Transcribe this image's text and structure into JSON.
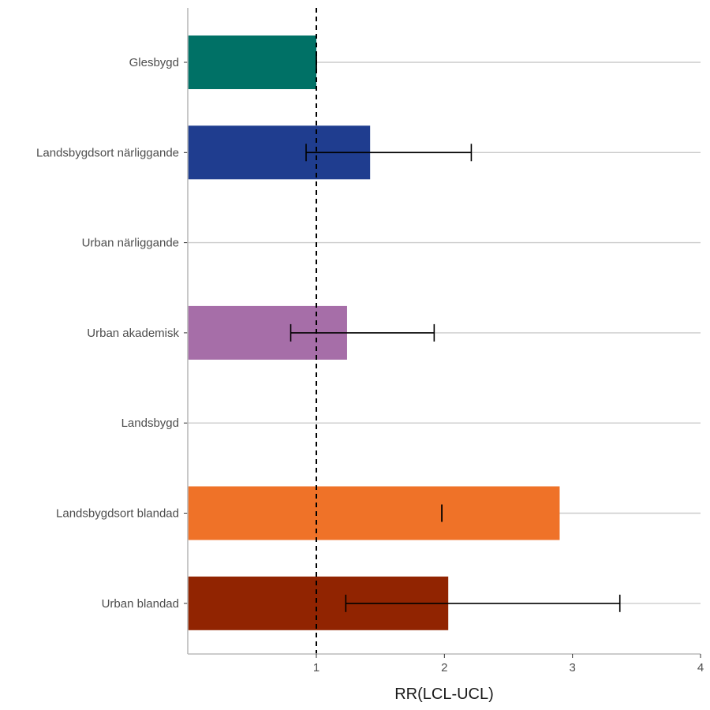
{
  "chart_data": {
    "type": "bar",
    "orientation": "horizontal",
    "xlabel": "RR(LCL-UCL)",
    "xlim": [
      0,
      4
    ],
    "x_ticks": [
      1,
      2,
      3,
      4
    ],
    "x_tick_labels": [
      "1",
      "2",
      "3",
      "4"
    ],
    "reference_line": 1,
    "grid": "horizontal major lines at each category",
    "categories": [
      "Glesbygd",
      "Landsbygdsort närliggande",
      "Urban närliggande",
      "Urban akademisk",
      "Landsbygd",
      "Landsbygdsort blandad",
      "Urban blandad"
    ],
    "bars": [
      {
        "category": "Glesbygd",
        "value": 1.0,
        "lcl": 1.0,
        "ucl": 1.0,
        "color": "#007166"
      },
      {
        "category": "Landsbygdsort närliggande",
        "value": 1.42,
        "lcl": 0.92,
        "ucl": 2.21,
        "color": "#1f3d8f"
      },
      {
        "category": "Urban närliggande",
        "value": null,
        "lcl": null,
        "ucl": null,
        "color": null
      },
      {
        "category": "Urban akademisk",
        "value": 1.24,
        "lcl": 0.8,
        "ucl": 1.92,
        "color": "#a66ea8"
      },
      {
        "category": "Landsbygd",
        "value": null,
        "lcl": null,
        "ucl": null,
        "color": null
      },
      {
        "category": "Landsbygdsort blandad",
        "value": 2.9,
        "lcl": 1.98,
        "ucl": 1.98,
        "color": "#ef7228"
      },
      {
        "category": "Urban blandad",
        "value": 2.03,
        "lcl": 1.23,
        "ucl": 3.37,
        "color": "#912401"
      }
    ]
  }
}
